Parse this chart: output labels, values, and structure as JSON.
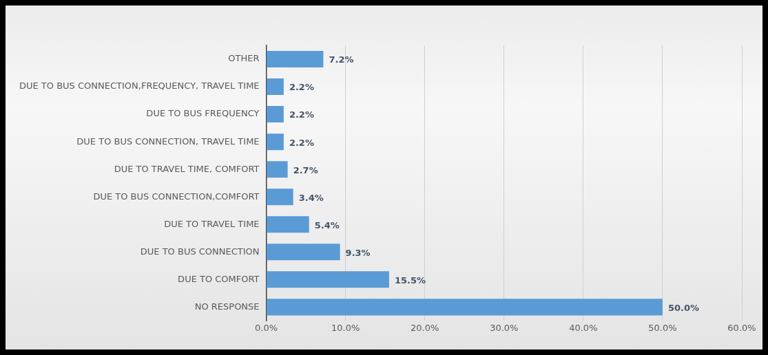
{
  "chart_data": {
    "type": "bar",
    "orientation": "horizontal",
    "categories": [
      "OTHER",
      "DUE TO BUS CONNECTION,FREQUENCY, TRAVEL TIME",
      "DUE TO BUS FREQUENCY",
      "DUE TO BUS CONNECTION, TRAVEL TIME",
      "DUE TO TRAVEL TIME, COMFORT",
      "DUE TO BUS CONNECTION,COMFORT",
      "DUE TO TRAVEL TIME",
      "DUE TO BUS CONNECTION",
      "DUE TO COMFORT",
      "NO RESPONSE"
    ],
    "values": [
      7.2,
      2.2,
      2.2,
      2.2,
      2.7,
      3.4,
      5.4,
      9.3,
      15.5,
      50.0
    ],
    "value_labels": [
      "7.2%",
      "2.2%",
      "2.2%",
      "2.2%",
      "2.7%",
      "3.4%",
      "5.4%",
      "9.3%",
      "15.5%",
      "50.0%"
    ],
    "color": "#5b9bd5",
    "xlim": [
      0,
      60
    ],
    "xticks": [
      {
        "value": 0,
        "label": "0.0%"
      },
      {
        "value": 10,
        "label": "10.0%"
      },
      {
        "value": 20,
        "label": "20.0%"
      },
      {
        "value": 30,
        "label": "30.0%"
      },
      {
        "value": 40,
        "label": "40.0%"
      },
      {
        "value": 50,
        "label": "50.0%"
      },
      {
        "value": 60,
        "label": "60.0%"
      }
    ],
    "grid": "x",
    "legend": false
  }
}
